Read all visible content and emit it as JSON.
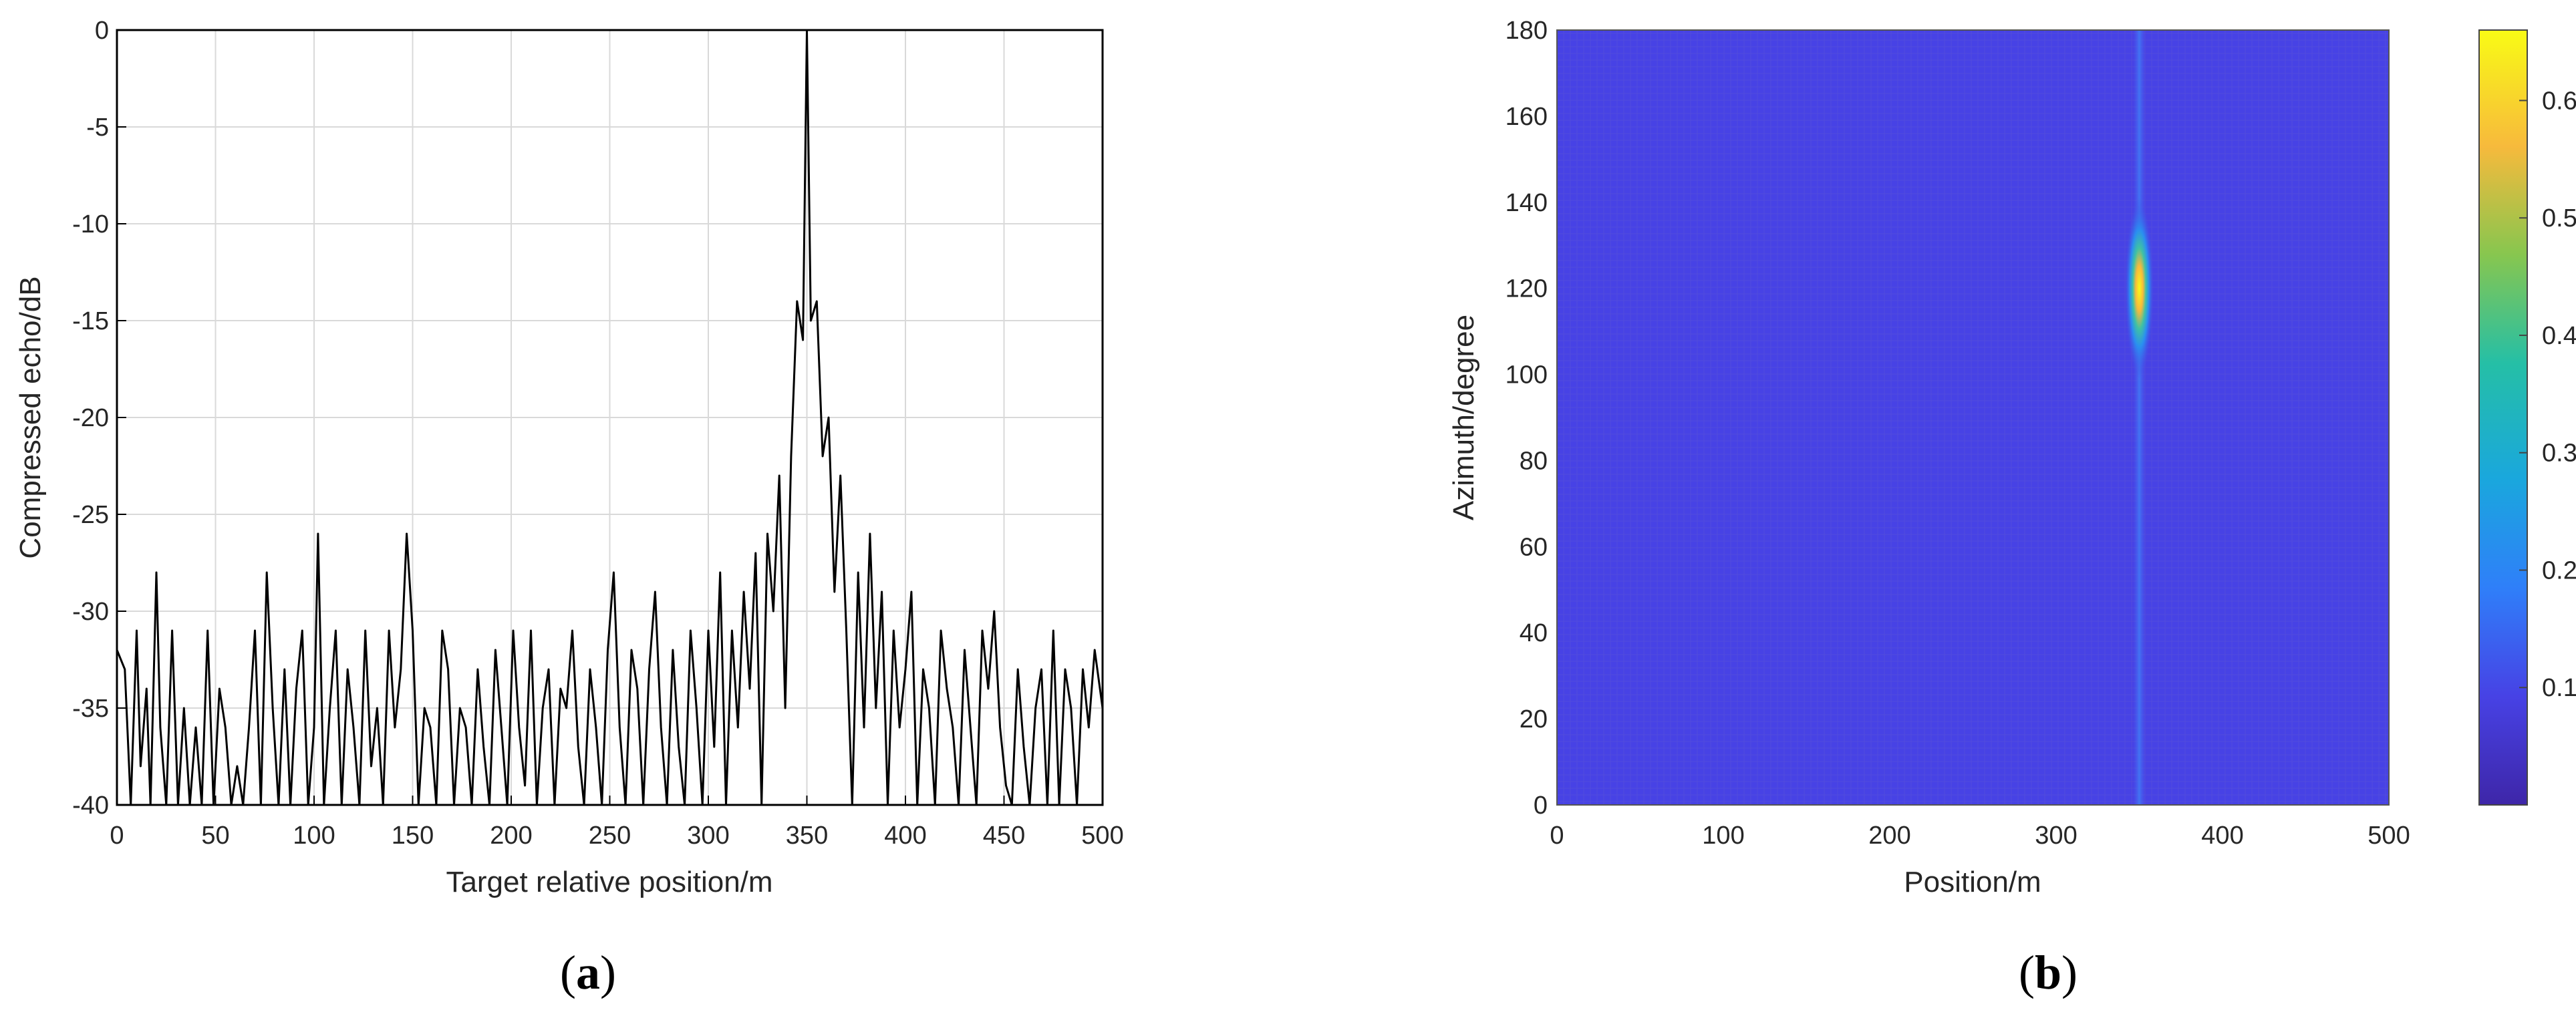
{
  "chart_data": [
    {
      "type": "line",
      "panel": "(a)",
      "panel_letter": "a",
      "xlabel": "Target relative position/m",
      "ylabel": "Compressed echo/dB",
      "xlim": [
        0,
        500
      ],
      "ylim": [
        -40,
        0
      ],
      "xticks": [
        0,
        50,
        100,
        150,
        200,
        250,
        300,
        350,
        400,
        450,
        500
      ],
      "yticks": [
        0,
        -5,
        -10,
        -15,
        -20,
        -25,
        -30,
        -35,
        -40
      ],
      "grid": true,
      "line_color": "#000000",
      "series": [
        {
          "x": [
            0,
            4,
            7,
            10,
            12,
            15,
            17,
            20,
            22,
            25,
            28,
            31,
            34,
            37,
            40,
            43,
            46,
            49,
            52,
            55,
            58,
            61,
            64,
            67,
            70,
            73,
            76,
            79,
            82,
            85,
            88,
            91,
            94,
            97,
            100,
            102,
            105,
            108,
            111,
            114,
            117,
            120,
            123,
            126,
            129,
            132,
            135,
            138,
            141,
            144,
            147,
            150,
            153,
            156,
            159,
            162,
            165,
            168,
            171,
            174,
            177,
            180,
            183,
            186,
            189,
            192,
            195,
            198,
            201,
            204,
            207,
            210,
            213,
            216,
            219,
            222,
            225,
            228,
            231,
            234,
            237,
            240,
            243,
            246,
            249,
            252,
            255,
            258,
            261,
            264,
            267,
            270,
            273,
            276,
            279,
            282,
            285,
            288,
            291,
            294,
            297,
            300,
            303,
            306,
            309,
            312,
            315,
            318,
            321,
            324,
            327,
            330,
            333,
            336,
            339,
            342,
            345,
            348,
            350,
            352,
            355,
            358,
            361,
            364,
            367,
            370,
            373,
            376,
            379,
            382,
            385,
            388,
            391,
            394,
            397,
            400,
            403,
            406,
            409,
            412,
            415,
            418,
            421,
            424,
            427,
            430,
            433,
            436,
            439,
            442,
            445,
            448,
            451,
            454,
            457,
            460,
            463,
            466,
            469,
            472,
            475,
            478,
            481,
            484,
            487,
            490,
            493,
            496,
            500
          ],
          "y": [
            -32,
            -33,
            -40,
            -31,
            -38,
            -34,
            -40,
            -28,
            -36,
            -40,
            -31,
            -40,
            -35,
            -40,
            -36,
            -40,
            -31,
            -40,
            -34,
            -36,
            -40,
            -38,
            -40,
            -36,
            -31,
            -40,
            -28,
            -35,
            -40,
            -33,
            -40,
            -34,
            -31,
            -40,
            -36,
            -26,
            -40,
            -35,
            -31,
            -40,
            -33,
            -36,
            -40,
            -31,
            -38,
            -35,
            -40,
            -31,
            -36,
            -33,
            -26,
            -31,
            -40,
            -35,
            -36,
            -40,
            -31,
            -33,
            -40,
            -35,
            -36,
            -40,
            -33,
            -37,
            -40,
            -32,
            -36,
            -40,
            -31,
            -36,
            -39,
            -31,
            -40,
            -35,
            -33,
            -40,
            -34,
            -35,
            -31,
            -37,
            -40,
            -33,
            -36,
            -40,
            -32,
            -28,
            -36,
            -40,
            -32,
            -34,
            -40,
            -33,
            -29,
            -36,
            -40,
            -32,
            -37,
            -40,
            -31,
            -35,
            -40,
            -31,
            -37,
            -28,
            -40,
            -31,
            -36,
            -29,
            -34,
            -27,
            -40,
            -26,
            -30,
            -23,
            -35,
            -22,
            -14,
            -16,
            0,
            -15,
            -14,
            -22,
            -20,
            -29,
            -23,
            -31,
            -40,
            -28,
            -36,
            -26,
            -35,
            -29,
            -40,
            -31,
            -36,
            -33,
            -29,
            -40,
            -33,
            -35,
            -40,
            -31,
            -34,
            -36,
            -40,
            -32,
            -36,
            -40,
            -31,
            -34,
            -30,
            -36,
            -39,
            -40,
            -33,
            -37,
            -40,
            -35,
            -33,
            -40,
            -31,
            -40,
            -33,
            -35,
            -40,
            -33,
            -36,
            -32,
            -35
          ]
        }
      ]
    },
    {
      "type": "heatmap",
      "panel": "(b)",
      "panel_letter": "b",
      "xlabel": "Position/m",
      "ylabel": "Azimuth/degree",
      "xlim": [
        0,
        500
      ],
      "ylim": [
        0,
        180
      ],
      "xticks": [
        0,
        100,
        200,
        300,
        400,
        500
      ],
      "yticks": [
        0,
        20,
        40,
        60,
        80,
        100,
        120,
        140,
        160,
        180
      ],
      "colorbar": {
        "range": [
          0,
          0.66
        ],
        "ticks": [
          0.1,
          0.2,
          0.3,
          0.4,
          0.5,
          0.6
        ],
        "colormap": "parula",
        "placement": "right"
      },
      "background_value": 0.03,
      "peak": {
        "position": 350,
        "azimuth": 120,
        "value": 0.66
      },
      "ridge": {
        "position": 350,
        "azimuth_range": [
          0,
          180
        ],
        "value": 0.06
      }
    }
  ]
}
